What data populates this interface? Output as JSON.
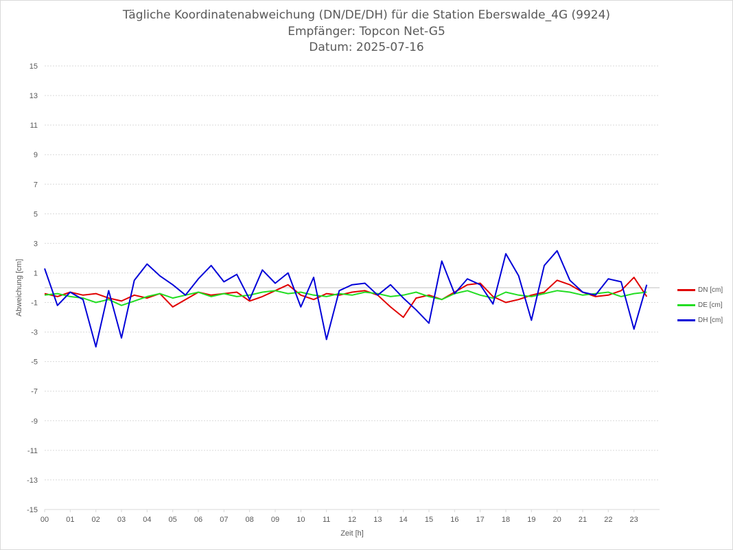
{
  "chart_data": {
    "type": "line",
    "title": "Tägliche Koordinatenabweichung (DN/DE/DH) für die Station Eberswalde_4G (9924)",
    "subtitle1": "Empfänger: Topcon Net-G5",
    "subtitle2": "Datum: 2025-07-16",
    "xlabel": "Zeit [h]",
    "ylabel": "Abweichung [cm]",
    "xlim": [
      0,
      24
    ],
    "ylim": [
      -15,
      15
    ],
    "x_ticks": [
      "00",
      "01",
      "02",
      "03",
      "04",
      "05",
      "06",
      "07",
      "08",
      "09",
      "10",
      "11",
      "12",
      "13",
      "14",
      "15",
      "16",
      "17",
      "18",
      "19",
      "20",
      "21",
      "22",
      "23"
    ],
    "y_ticks": [
      15,
      13,
      11,
      9,
      7,
      5,
      3,
      1,
      -1,
      -3,
      -5,
      -7,
      -9,
      -11,
      -13,
      -15
    ],
    "grid": true,
    "legend_position": "right",
    "series": [
      {
        "name": "DN [cm]",
        "color": "#e00000",
        "x": [
          0,
          0.5,
          1,
          1.5,
          2,
          2.5,
          3,
          3.5,
          4,
          4.5,
          5,
          5.5,
          6,
          6.5,
          7,
          7.5,
          8,
          8.5,
          9,
          9.5,
          10,
          10.5,
          11,
          11.5,
          12,
          12.5,
          13,
          13.5,
          14,
          14.5,
          15,
          15.5,
          16,
          16.5,
          17,
          17.5,
          18,
          18.5,
          19,
          19.5,
          20,
          20.5,
          21,
          21.5,
          22,
          22.5,
          23,
          23.5
        ],
        "values": [
          -0.4,
          -0.6,
          -0.3,
          -0.5,
          -0.4,
          -0.7,
          -0.9,
          -0.5,
          -0.7,
          -0.4,
          -1.3,
          -0.8,
          -0.3,
          -0.5,
          -0.4,
          -0.3,
          -0.9,
          -0.6,
          -0.2,
          0.2,
          -0.5,
          -0.8,
          -0.4,
          -0.5,
          -0.3,
          -0.2,
          -0.5,
          -1.3,
          -2.0,
          -0.7,
          -0.5,
          -0.8,
          -0.3,
          0.2,
          0.3,
          -0.6,
          -1.0,
          -0.8,
          -0.5,
          -0.3,
          0.5,
          0.2,
          -0.3,
          -0.6,
          -0.5,
          -0.2,
          0.7,
          -0.6
        ]
      },
      {
        "name": "DE [cm]",
        "color": "#22dd22",
        "x": [
          0,
          0.5,
          1,
          1.5,
          2,
          2.5,
          3,
          3.5,
          4,
          4.5,
          5,
          5.5,
          6,
          6.5,
          7,
          7.5,
          8,
          8.5,
          9,
          9.5,
          10,
          10.5,
          11,
          11.5,
          12,
          12.5,
          13,
          13.5,
          14,
          14.5,
          15,
          15.5,
          16,
          16.5,
          17,
          17.5,
          18,
          18.5,
          19,
          19.5,
          20,
          20.5,
          21,
          21.5,
          22,
          22.5,
          23,
          23.5
        ],
        "values": [
          -0.5,
          -0.4,
          -0.6,
          -0.7,
          -1.0,
          -0.8,
          -1.2,
          -0.9,
          -0.6,
          -0.4,
          -0.7,
          -0.5,
          -0.3,
          -0.6,
          -0.4,
          -0.6,
          -0.5,
          -0.3,
          -0.2,
          -0.4,
          -0.3,
          -0.5,
          -0.6,
          -0.4,
          -0.5,
          -0.3,
          -0.4,
          -0.6,
          -0.5,
          -0.3,
          -0.6,
          -0.8,
          -0.4,
          -0.2,
          -0.5,
          -0.7,
          -0.3,
          -0.5,
          -0.6,
          -0.4,
          -0.2,
          -0.3,
          -0.5,
          -0.4,
          -0.3,
          -0.6,
          -0.4,
          -0.3
        ]
      },
      {
        "name": "DH [cm]",
        "color": "#0000d8",
        "x": [
          0,
          0.5,
          1,
          1.5,
          2,
          2.5,
          3,
          3.5,
          4,
          4.5,
          5,
          5.5,
          6,
          6.5,
          7,
          7.5,
          8,
          8.5,
          9,
          9.5,
          10,
          10.5,
          11,
          11.5,
          12,
          12.5,
          13,
          13.5,
          14,
          14.5,
          15,
          15.5,
          16,
          16.5,
          17,
          17.5,
          18,
          18.5,
          19,
          19.5,
          20,
          20.5,
          21,
          21.5,
          22,
          22.5,
          23,
          23.5
        ],
        "values": [
          1.3,
          -1.2,
          -0.3,
          -0.8,
          -4.0,
          -0.2,
          -3.4,
          0.5,
          1.6,
          0.8,
          0.2,
          -0.5,
          0.6,
          1.5,
          0.4,
          0.9,
          -0.8,
          1.2,
          0.3,
          1.0,
          -1.3,
          0.7,
          -3.5,
          -0.2,
          0.2,
          0.3,
          -0.5,
          0.2,
          -0.7,
          -1.5,
          -2.4,
          1.8,
          -0.4,
          0.6,
          0.2,
          -1.1,
          2.3,
          0.8,
          -2.2,
          1.5,
          2.5,
          0.5,
          -0.3,
          -0.5,
          0.6,
          0.4,
          -2.8,
          0.2
        ]
      }
    ]
  }
}
